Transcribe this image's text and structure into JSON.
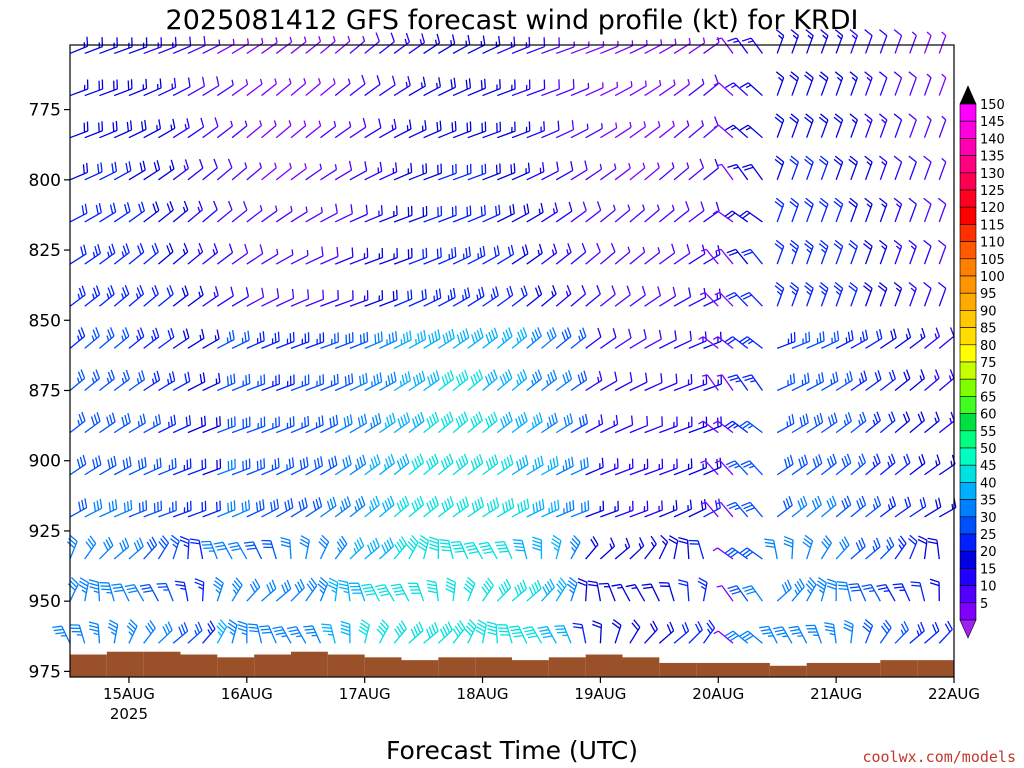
{
  "chart_data": {
    "type": "wind-barb-timeheight",
    "title": "2025081412 GFS forecast wind profile (kt) for KRDI",
    "xlabel": "Forecast Time (UTC)",
    "credit": "coolwx.com/models",
    "x_ticks": [
      {
        "label": "15AUG",
        "sub": "2025",
        "day": 1
      },
      {
        "label": "16AUG",
        "day": 2
      },
      {
        "label": "17AUG",
        "day": 3
      },
      {
        "label": "18AUG",
        "day": 4
      },
      {
        "label": "19AUG",
        "day": 5
      },
      {
        "label": "20AUG",
        "day": 6
      },
      {
        "label": "21AUG",
        "day": 7
      },
      {
        "label": "22AUG",
        "day": 8
      }
    ],
    "xlim_days": [
      0.5,
      8.0
    ],
    "y_ticks": [
      "775",
      "800",
      "825",
      "850",
      "875",
      "900",
      "925",
      "950",
      "975"
    ],
    "ylim_hpa": [
      752,
      977
    ],
    "levels_hpa": [
      755,
      770,
      785,
      800,
      815,
      830,
      845,
      860,
      875,
      890,
      905,
      920,
      935,
      950,
      965
    ],
    "colorbar_labels": [
      "150",
      "145",
      "140",
      "135",
      "130",
      "125",
      "120",
      "115",
      "110",
      "105",
      "100",
      "95",
      "90",
      "85",
      "80",
      "75",
      "70",
      "65",
      "60",
      "55",
      "50",
      "45",
      "40",
      "35",
      "30",
      "25",
      "20",
      "15",
      "10",
      "5"
    ],
    "colorbar_colors": [
      "#ff00ff",
      "#ff00e0",
      "#ff00b0",
      "#ff0080",
      "#ff0050",
      "#ff0020",
      "#ff0000",
      "#ff3000",
      "#ff5a00",
      "#ff7f00",
      "#ff9500",
      "#ffaa00",
      "#ffc800",
      "#ffdd00",
      "#ffff00",
      "#c8ff00",
      "#80ff00",
      "#40ff20",
      "#00e040",
      "#00ff80",
      "#00ffc0",
      "#00e0e0",
      "#00b0ff",
      "#0080ff",
      "#0050ff",
      "#0020ff",
      "#0000e0",
      "#2000ff",
      "#5000ff",
      "#8000ff"
    ],
    "colorbar_arrow_colors": {
      "top": "#000000",
      "bottom": "#a020f0"
    },
    "terrain_color": "#9a5028",
    "terrain_top_hpa": [
      969,
      968,
      968,
      969,
      970,
      969,
      968,
      969,
      970,
      971,
      970,
      970,
      971,
      970,
      969,
      970,
      972,
      972,
      972,
      973,
      972,
      972,
      971,
      971
    ],
    "terrain_day_step": 0.3125
  }
}
